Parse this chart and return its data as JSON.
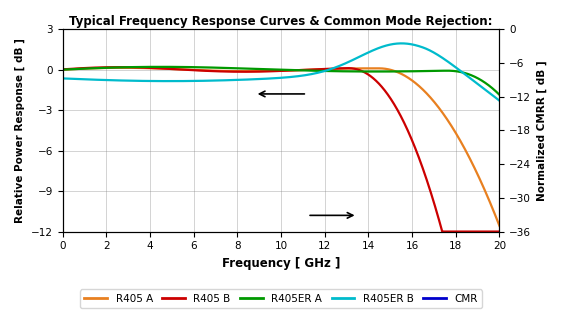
{
  "title": "Typical Frequency Response Curves & Common Mode Rejection:",
  "xlabel": "Frequency [ GHz ]",
  "ylabel_left": "Relative Power Response [ dB ]",
  "ylabel_right": "Normalized CMRR [ dB ]",
  "ylim_left": [
    -12,
    3
  ],
  "ylim_right": [
    -36,
    0
  ],
  "xlim": [
    0,
    20
  ],
  "yticks_left": [
    -12,
    -9,
    -6,
    -3,
    0,
    3
  ],
  "yticks_right": [
    -36,
    -30,
    -24,
    -18,
    -12,
    -6,
    0
  ],
  "xticks": [
    0,
    2,
    4,
    6,
    8,
    10,
    12,
    14,
    16,
    18,
    20
  ],
  "colors": {
    "R405A": "#E88020",
    "R405B": "#CC0000",
    "R405ERA": "#009900",
    "R405ERB": "#00BBCC",
    "CMR": "#0000CC"
  },
  "legend": [
    "R405 A",
    "R405 B",
    "R405ER A",
    "R405ER B",
    "CMR"
  ]
}
